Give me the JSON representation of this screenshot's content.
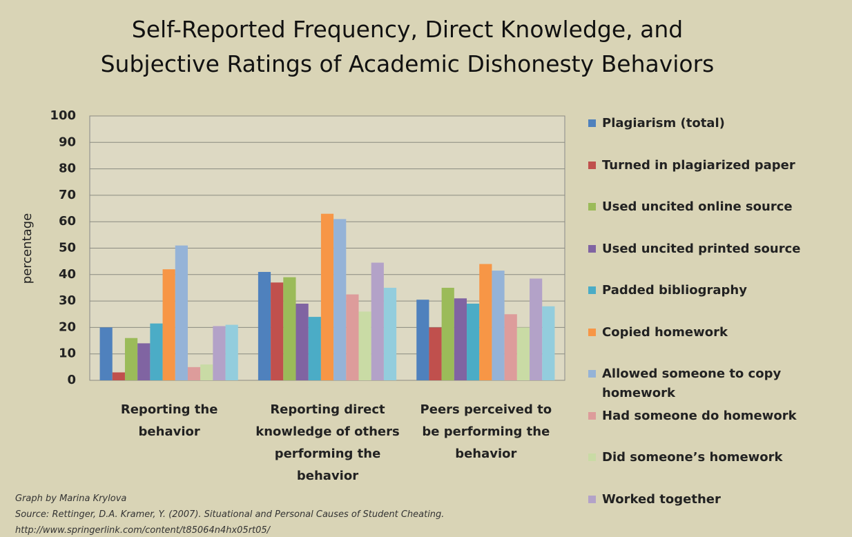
{
  "chart_data": {
    "type": "bar",
    "title": "Self-Reported Frequency, Direct Knowledge, and Subjective Ratings of Academic Dishonesty Behaviors",
    "ylabel": "percentage",
    "categories": [
      "Reporting the behavior",
      "Reporting direct knowledge of others performing the behavior",
      "Peers perceived to be performing the behavior"
    ],
    "series": [
      {
        "name": "Plagiarism  (total)",
        "color": "#4f81bd",
        "values": [
          20,
          41,
          30.5
        ]
      },
      {
        "name": "Turned in plagiarized  paper",
        "color": "#c0504d",
        "values": [
          3,
          37,
          20
        ]
      },
      {
        "name": "Used uncited online source",
        "color": "#9bbb59",
        "values": [
          16,
          39,
          35
        ]
      },
      {
        "name": "Used uncited printed source",
        "color": "#8064a2",
        "values": [
          14,
          29,
          31
        ]
      },
      {
        "name": "Padded bibliography",
        "color": "#4bacc6",
        "values": [
          21.5,
          24,
          29
        ]
      },
      {
        "name": "Copied homework",
        "color": "#f79646",
        "values": [
          42,
          63,
          44
        ]
      },
      {
        "name": "Allowed someone to copy homework",
        "color": "#95b3d7",
        "values": [
          51,
          61,
          41.5
        ]
      },
      {
        "name": "Had someone do homework",
        "color": "#dd9c9b",
        "values": [
          5,
          32.5,
          25
        ]
      },
      {
        "name": "Did someone’s homework",
        "color": "#c9dba5",
        "values": [
          6,
          26,
          20
        ]
      },
      {
        "name": "Worked together",
        "color": "#b3a2c8",
        "values": [
          20.5,
          44.5,
          38.5
        ]
      },
      {
        "color": "#93cddd",
        "values": [
          21,
          35,
          28
        ]
      }
    ],
    "ylim": [
      0,
      100
    ],
    "yticks": [
      0,
      10,
      20,
      30,
      40,
      50,
      60,
      70,
      80,
      90,
      100
    ],
    "grid": true,
    "footnotes": [
      "Graph by Marina Krylova",
      "Source: Rettinger, D.A. Kramer, Y. (2007).  Situational and Personal Causes of Student Cheating.",
      "http://www.springerlink.com/content/t85064n4hx05rt05/"
    ]
  }
}
